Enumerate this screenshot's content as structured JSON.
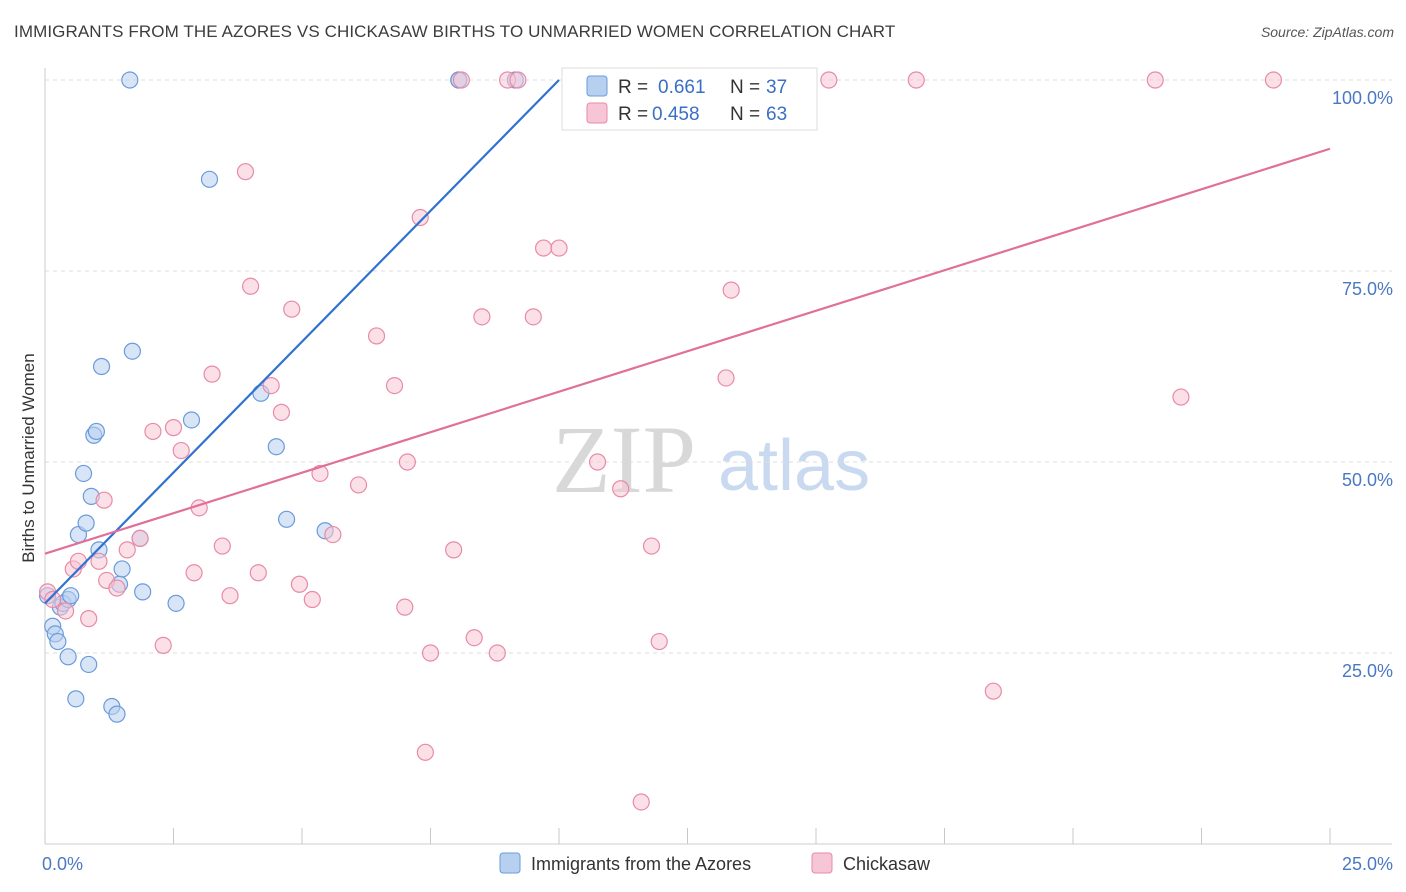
{
  "title": "IMMIGRANTS FROM THE AZORES VS CHICKASAW BIRTHS TO UNMARRIED WOMEN CORRELATION CHART",
  "source": "Source: ZipAtlas.com",
  "watermark": {
    "zip": "ZIP",
    "atlas": "atlas"
  },
  "colors": {
    "blue_fill": "#b8d0f0",
    "blue_stroke": "#6b9bdb",
    "blue_line": "#2f72d0",
    "pink_fill": "#f7c6d6",
    "pink_stroke": "#e88aa8",
    "pink_line": "#e0709a",
    "tick_text": "#4a78c2",
    "grid": "#dddddd"
  },
  "chart_data": {
    "type": "scatter",
    "xlabel": "",
    "ylabel": "Births to Unmarried Women",
    "xlim": [
      0,
      25
    ],
    "ylim": [
      0,
      100
    ],
    "x_ticks": [
      "0.0%",
      "25.0%"
    ],
    "y_ticks": [
      {
        "value": 100,
        "label": "100.0%"
      },
      {
        "value": 75,
        "label": "75.0%"
      },
      {
        "value": 50,
        "label": "50.0%"
      },
      {
        "value": 25,
        "label": "25.0%"
      }
    ],
    "legend_position": "top-center",
    "legend": [
      {
        "r_label": "R =",
        "r_value": "0.661",
        "n_label": "N =",
        "n_value": "37"
      },
      {
        "r_label": "R =",
        "r_value": "0.458",
        "n_label": "N =",
        "n_value": "63"
      }
    ],
    "series": [
      {
        "name": "Immigrants from the Azores",
        "color": "blue",
        "trend": {
          "x": [
            0.0,
            10.0
          ],
          "y": [
            31.5,
            100.0
          ]
        },
        "points": [
          [
            0.05,
            32.5
          ],
          [
            0.15,
            28.5
          ],
          [
            0.2,
            27.5
          ],
          [
            0.25,
            26.5
          ],
          [
            0.3,
            31.0
          ],
          [
            0.35,
            31.5
          ],
          [
            0.45,
            32.0
          ],
          [
            0.5,
            32.5
          ],
          [
            0.45,
            24.5
          ],
          [
            0.6,
            19.0
          ],
          [
            0.65,
            40.5
          ],
          [
            0.75,
            48.5
          ],
          [
            0.8,
            42.0
          ],
          [
            0.85,
            23.5
          ],
          [
            0.9,
            45.5
          ],
          [
            0.95,
            53.5
          ],
          [
            1.0,
            54.0
          ],
          [
            1.05,
            38.5
          ],
          [
            1.1,
            62.5
          ],
          [
            1.3,
            18.0
          ],
          [
            1.4,
            17.0
          ],
          [
            1.45,
            34.0
          ],
          [
            1.5,
            36.0
          ],
          [
            1.65,
            100.0
          ],
          [
            1.7,
            64.5
          ],
          [
            1.85,
            40.0
          ],
          [
            1.9,
            33.0
          ],
          [
            2.55,
            31.5
          ],
          [
            2.85,
            55.5
          ],
          [
            3.2,
            87.0
          ],
          [
            4.2,
            59.0
          ],
          [
            4.5,
            52.0
          ],
          [
            4.7,
            42.5
          ],
          [
            5.45,
            41.0
          ],
          [
            8.05,
            100.0
          ],
          [
            8.05,
            100.0
          ],
          [
            9.15,
            100.0
          ]
        ]
      },
      {
        "name": "Chickasaw",
        "color": "pink",
        "trend": {
          "x": [
            0.0,
            25.0
          ],
          "y": [
            38.0,
            91.0
          ]
        },
        "points": [
          [
            0.05,
            33.0
          ],
          [
            0.15,
            32.0
          ],
          [
            0.4,
            30.5
          ],
          [
            0.55,
            36.0
          ],
          [
            0.65,
            37.0
          ],
          [
            0.85,
            29.5
          ],
          [
            1.05,
            37.0
          ],
          [
            1.15,
            45.0
          ],
          [
            1.2,
            34.5
          ],
          [
            1.4,
            33.5
          ],
          [
            1.6,
            38.5
          ],
          [
            1.85,
            40.0
          ],
          [
            2.1,
            54.0
          ],
          [
            2.3,
            26.0
          ],
          [
            2.5,
            54.5
          ],
          [
            2.65,
            51.5
          ],
          [
            2.9,
            35.5
          ],
          [
            3.0,
            44.0
          ],
          [
            3.25,
            61.5
          ],
          [
            3.45,
            39.0
          ],
          [
            3.6,
            32.5
          ],
          [
            3.9,
            88.0
          ],
          [
            4.0,
            73.0
          ],
          [
            4.15,
            35.5
          ],
          [
            4.4,
            60.0
          ],
          [
            4.6,
            56.5
          ],
          [
            4.8,
            70.0
          ],
          [
            4.95,
            34.0
          ],
          [
            5.2,
            32.0
          ],
          [
            5.35,
            48.5
          ],
          [
            5.6,
            40.5
          ],
          [
            6.1,
            47.0
          ],
          [
            6.45,
            66.5
          ],
          [
            6.8,
            60.0
          ],
          [
            7.0,
            31.0
          ],
          [
            7.05,
            50.0
          ],
          [
            7.3,
            82.0
          ],
          [
            7.4,
            12.0
          ],
          [
            7.5,
            25.0
          ],
          [
            7.95,
            38.5
          ],
          [
            8.1,
            100.0
          ],
          [
            8.35,
            27.0
          ],
          [
            8.5,
            69.0
          ],
          [
            8.8,
            25.0
          ],
          [
            9.0,
            100.0
          ],
          [
            9.2,
            100.0
          ],
          [
            9.5,
            69.0
          ],
          [
            9.7,
            78.0
          ],
          [
            10.0,
            78.0
          ],
          [
            10.75,
            50.0
          ],
          [
            11.2,
            46.5
          ],
          [
            11.6,
            5.5
          ],
          [
            11.8,
            39.0
          ],
          [
            11.95,
            26.5
          ],
          [
            13.25,
            100.0
          ],
          [
            13.25,
            61.0
          ],
          [
            13.35,
            72.5
          ],
          [
            15.25,
            100.0
          ],
          [
            16.95,
            100.0
          ],
          [
            18.45,
            20.0
          ],
          [
            21.6,
            100.0
          ],
          [
            22.1,
            58.5
          ],
          [
            23.9,
            100.0
          ]
        ]
      }
    ]
  }
}
